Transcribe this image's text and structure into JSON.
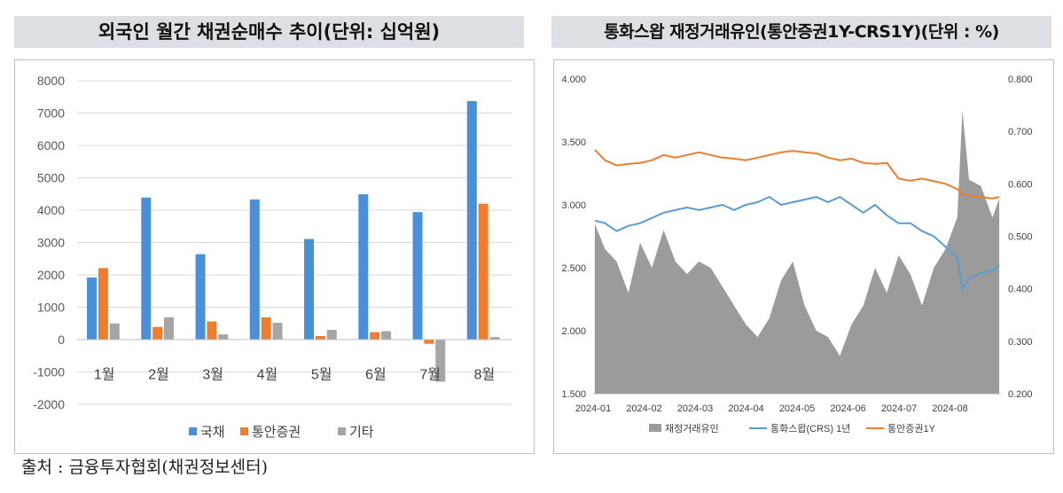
{
  "left_title": "외국인 월간 채권순매수 추이(단위: 십억원)",
  "right_title": "통화스왑 재정거래유인(통안증권1Y-CRS1Y)(단위 : %)",
  "source": "출처 : 금융투자협회(채권정보센터)",
  "colors": {
    "gov": "#4a90d9",
    "msb": "#ed7d31",
    "other": "#a5a5a5",
    "crs": "#5b9bd5",
    "area": "#9b9b9b"
  },
  "chart_data": [
    {
      "type": "bar",
      "categories": [
        "1월",
        "2월",
        "3월",
        "4월",
        "5월",
        "6월",
        "7월",
        "8월"
      ],
      "series": [
        {
          "name": "국채",
          "values": [
            1920,
            4390,
            2640,
            4330,
            3110,
            4490,
            3940,
            7370
          ]
        },
        {
          "name": "통안증권",
          "values": [
            2210,
            390,
            560,
            690,
            110,
            230,
            -130,
            4200
          ]
        },
        {
          "name": "기타",
          "values": [
            500,
            690,
            160,
            520,
            300,
            260,
            -1300,
            80
          ]
        }
      ],
      "ylim": [
        -2000,
        8000
      ],
      "yticks": [
        "8000",
        "7000",
        "6000",
        "5000",
        "4000",
        "3000",
        "2000",
        "1000",
        "0",
        "-1000",
        "-2000"
      ],
      "grid": true,
      "legend": "bottom"
    },
    {
      "type": "line",
      "x_ticks": [
        "2024-01",
        "2024-02",
        "2024-03",
        "2024-04",
        "2024-05",
        "2024-06",
        "2024-07",
        "2024-08"
      ],
      "y_left_ticks": [
        "4.000",
        "3.500",
        "3.000",
        "2.500",
        "2.000",
        "1.500"
      ],
      "y_right_ticks": [
        "0.800",
        "0.700",
        "0.600",
        "0.500",
        "0.400",
        "0.300",
        "0.200"
      ],
      "ylim_left": [
        1.5,
        4.0
      ],
      "ylim_right": [
        0.2,
        0.8
      ],
      "legend": "bottom",
      "series": [
        {
          "name": "재정거래유인",
          "axis": "left",
          "kind": "area",
          "x": [
            "2024-01-02",
            "2024-01-08",
            "2024-01-15",
            "2024-01-22",
            "2024-01-29",
            "2024-02-05",
            "2024-02-12",
            "2024-02-19",
            "2024-02-26",
            "2024-03-04",
            "2024-03-11",
            "2024-03-18",
            "2024-03-25",
            "2024-04-01",
            "2024-04-08",
            "2024-04-15",
            "2024-04-22",
            "2024-04-29",
            "2024-05-06",
            "2024-05-13",
            "2024-05-20",
            "2024-05-27",
            "2024-06-03",
            "2024-06-10",
            "2024-06-17",
            "2024-06-24",
            "2024-07-01",
            "2024-07-08",
            "2024-07-15",
            "2024-07-22",
            "2024-07-29",
            "2024-08-05",
            "2024-08-08",
            "2024-08-12",
            "2024-08-19",
            "2024-08-26",
            "2024-08-30"
          ],
          "values": [
            2.85,
            2.65,
            2.55,
            2.3,
            2.7,
            2.5,
            2.8,
            2.55,
            2.45,
            2.55,
            2.5,
            2.35,
            2.2,
            2.05,
            1.95,
            2.1,
            2.4,
            2.55,
            2.2,
            2.0,
            1.95,
            1.8,
            2.05,
            2.2,
            2.5,
            2.3,
            2.6,
            2.45,
            2.2,
            2.5,
            2.65,
            2.9,
            3.75,
            3.2,
            3.15,
            2.9,
            3.05
          ]
        },
        {
          "name": "통화스왑(CRS) 1년",
          "axis": "right",
          "kind": "line",
          "x": [
            "2024-01-02",
            "2024-01-08",
            "2024-01-15",
            "2024-01-22",
            "2024-01-29",
            "2024-02-05",
            "2024-02-12",
            "2024-02-19",
            "2024-02-26",
            "2024-03-04",
            "2024-03-11",
            "2024-03-18",
            "2024-03-25",
            "2024-04-01",
            "2024-04-08",
            "2024-04-15",
            "2024-04-22",
            "2024-04-29",
            "2024-05-06",
            "2024-05-13",
            "2024-05-20",
            "2024-05-27",
            "2024-06-03",
            "2024-06-10",
            "2024-06-17",
            "2024-06-24",
            "2024-07-01",
            "2024-07-08",
            "2024-07-15",
            "2024-07-22",
            "2024-07-29",
            "2024-08-05",
            "2024-08-08",
            "2024-08-12",
            "2024-08-19",
            "2024-08-26",
            "2024-08-30"
          ],
          "values": [
            0.53,
            0.525,
            0.51,
            0.52,
            0.525,
            0.535,
            0.545,
            0.55,
            0.555,
            0.55,
            0.555,
            0.56,
            0.55,
            0.56,
            0.565,
            0.575,
            0.56,
            0.565,
            0.57,
            0.575,
            0.565,
            0.575,
            0.56,
            0.545,
            0.56,
            0.54,
            0.525,
            0.525,
            0.51,
            0.5,
            0.48,
            0.46,
            0.4,
            0.42,
            0.43,
            0.435,
            0.445
          ]
        },
        {
          "name": "통안증권1Y",
          "axis": "right",
          "kind": "line",
          "x": [
            "2024-01-02",
            "2024-01-08",
            "2024-01-15",
            "2024-01-22",
            "2024-01-29",
            "2024-02-05",
            "2024-02-12",
            "2024-02-19",
            "2024-02-26",
            "2024-03-04",
            "2024-03-11",
            "2024-03-18",
            "2024-03-25",
            "2024-04-01",
            "2024-04-08",
            "2024-04-15",
            "2024-04-22",
            "2024-04-29",
            "2024-05-06",
            "2024-05-13",
            "2024-05-20",
            "2024-05-27",
            "2024-06-03",
            "2024-06-10",
            "2024-06-17",
            "2024-06-24",
            "2024-07-01",
            "2024-07-08",
            "2024-07-15",
            "2024-07-22",
            "2024-07-29",
            "2024-08-05",
            "2024-08-08",
            "2024-08-12",
            "2024-08-19",
            "2024-08-26",
            "2024-08-30"
          ],
          "values": [
            0.665,
            0.645,
            0.635,
            0.638,
            0.64,
            0.645,
            0.655,
            0.65,
            0.655,
            0.66,
            0.655,
            0.65,
            0.648,
            0.645,
            0.65,
            0.655,
            0.66,
            0.663,
            0.66,
            0.658,
            0.65,
            0.645,
            0.648,
            0.64,
            0.638,
            0.64,
            0.61,
            0.606,
            0.61,
            0.605,
            0.6,
            0.59,
            0.58,
            0.578,
            0.575,
            0.572,
            0.575
          ]
        }
      ]
    }
  ]
}
